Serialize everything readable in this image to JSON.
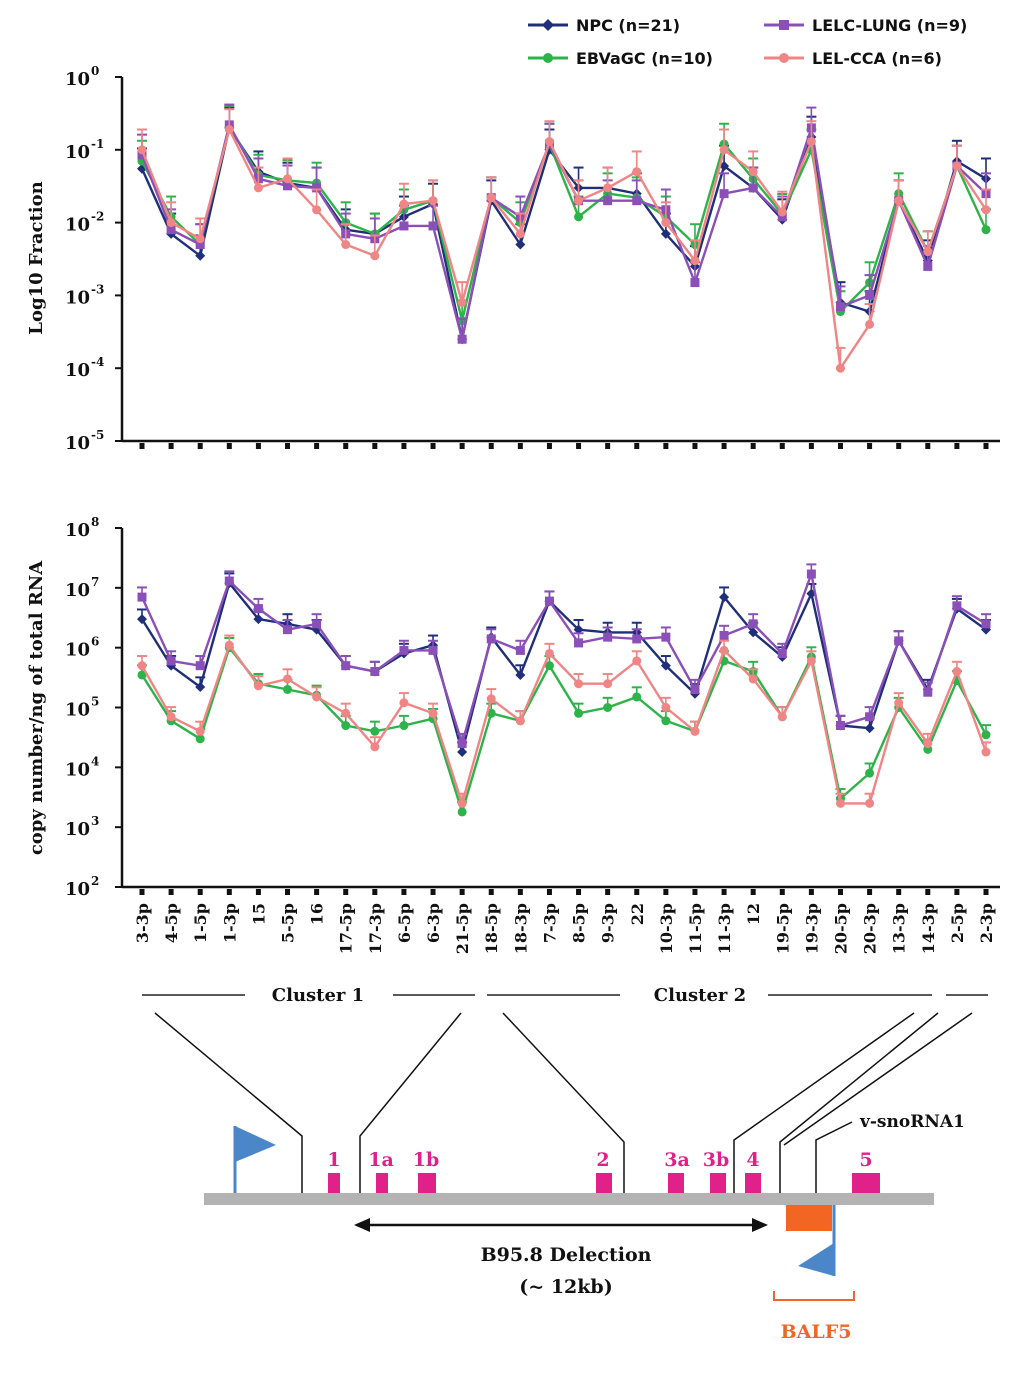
{
  "colors": {
    "npc": "#1f2f7a",
    "ebvagc": "#2db34a",
    "lelc": "#8b4fb8",
    "lelcca": "#f08585",
    "gene_box": "#e0218a",
    "balf5": "#f26522",
    "promoter": "#4a86c8",
    "genome_bar": "#b3b3b3"
  },
  "legend": [
    {
      "label": "NPC (n=21)",
      "marker": "diamond"
    },
    {
      "label": "EBVaGC (n=10)",
      "marker": "circle"
    },
    {
      "label": "LELC-LUNG (n=9)",
      "marker": "square"
    },
    {
      "label": "LEL-CCA (n=6)",
      "marker": "circle"
    }
  ],
  "chart_data": [
    {
      "type": "line",
      "title": "",
      "ylabel": "Log10 Fraction",
      "yscale": "log",
      "ylim": [
        1e-05,
        1
      ],
      "y_ticks": [
        {
          "base": "10",
          "exp": "0"
        },
        {
          "base": "10",
          "exp": "-1"
        },
        {
          "base": "10",
          "exp": "-2"
        },
        {
          "base": "10",
          "exp": "-3"
        },
        {
          "base": "10",
          "exp": "-4"
        },
        {
          "base": "10",
          "exp": "-5"
        }
      ],
      "categories": [
        "3-3p",
        "4-5p",
        "1-5p",
        "1-3p",
        "15",
        "5-5p",
        "16",
        "17-5p",
        "17-3p",
        "6-5p",
        "6-3p",
        "21-5p",
        "18-5p",
        "18-3p",
        "7-3p",
        "8-5p",
        "9-3p",
        "22",
        "10-3p",
        "11-5p",
        "11-3p",
        "12",
        "19-5p",
        "19-3p",
        "20-5p",
        "20-3p",
        "13-3p",
        "14-3p",
        "2-5p",
        "2-3p"
      ],
      "series": [
        {
          "name": "NPC (n=21)",
          "values": [
            0.055,
            0.007,
            0.0035,
            0.2,
            0.05,
            0.035,
            0.03,
            0.008,
            0.007,
            0.012,
            0.018,
            0.00025,
            0.02,
            0.005,
            0.1,
            0.03,
            0.03,
            0.025,
            0.007,
            0.0025,
            0.06,
            0.03,
            0.011,
            0.15,
            0.0008,
            0.0006,
            0.02,
            0.003,
            0.07,
            0.04
          ]
        },
        {
          "name": "EBVaGC (n=10)",
          "values": [
            0.07,
            0.012,
            0.005,
            0.21,
            0.045,
            0.038,
            0.035,
            0.01,
            0.007,
            0.015,
            0.02,
            0.00045,
            0.022,
            0.01,
            0.12,
            0.012,
            0.025,
            0.022,
            0.012,
            0.005,
            0.12,
            0.04,
            0.013,
            0.1,
            0.0006,
            0.0015,
            0.025,
            0.004,
            0.06,
            0.008
          ]
        },
        {
          "name": "LELC-LUNG (n=9)",
          "values": [
            0.085,
            0.008,
            0.005,
            0.22,
            0.04,
            0.032,
            0.03,
            0.007,
            0.006,
            0.009,
            0.009,
            0.00025,
            0.022,
            0.012,
            0.12,
            0.02,
            0.02,
            0.02,
            0.015,
            0.0015,
            0.025,
            0.03,
            0.012,
            0.2,
            0.0007,
            0.001,
            0.02,
            0.0025,
            0.06,
            0.025
          ]
        },
        {
          "name": "LEL-CCA (n=6)",
          "values": [
            0.1,
            0.01,
            0.006,
            0.19,
            0.03,
            0.04,
            0.015,
            0.005,
            0.0035,
            0.018,
            0.02,
            0.0008,
            0.022,
            0.007,
            0.13,
            0.02,
            0.03,
            0.05,
            0.01,
            0.003,
            0.1,
            0.05,
            0.014,
            0.13,
            0.0001,
            0.0004,
            0.02,
            0.004,
            0.06,
            0.015
          ]
        }
      ]
    },
    {
      "type": "line",
      "title": "",
      "ylabel": "copy number/ng of total RNA",
      "yscale": "log",
      "ylim": [
        100,
        100000000.0
      ],
      "y_ticks": [
        {
          "base": "10",
          "exp": "8"
        },
        {
          "base": "10",
          "exp": "7"
        },
        {
          "base": "10",
          "exp": "6"
        },
        {
          "base": "10",
          "exp": "5"
        },
        {
          "base": "10",
          "exp": "4"
        },
        {
          "base": "10",
          "exp": "3"
        },
        {
          "base": "10",
          "exp": "2"
        }
      ],
      "categories": [
        "3-3p",
        "4-5p",
        "1-5p",
        "1-3p",
        "15",
        "5-5p",
        "16",
        "17-5p",
        "17-3p",
        "6-5p",
        "6-3p",
        "21-5p",
        "18-5p",
        "18-3p",
        "7-3p",
        "8-5p",
        "9-3p",
        "22",
        "10-3p",
        "11-5p",
        "11-3p",
        "12",
        "19-5p",
        "19-3p",
        "20-5p",
        "20-3p",
        "13-3p",
        "14-3p",
        "2-5p",
        "2-3p"
      ],
      "series": [
        {
          "name": "NPC (n=21)",
          "values": [
            3000000,
            500000,
            220000,
            12000000,
            3000000,
            2500000,
            2000000,
            500000,
            400000,
            800000,
            1100000,
            18000,
            1500000,
            350000,
            6000000,
            2000000,
            1800000,
            1800000,
            500000,
            170000,
            7000000,
            1800000,
            700000,
            8000000,
            50000,
            45000,
            1300000,
            200000,
            4500000,
            2000000
          ]
        },
        {
          "name": "EBVaGC (n=10)",
          "values": [
            350000,
            60000,
            30000,
            1000000,
            250000,
            200000,
            160000,
            50000,
            40000,
            50000,
            65000,
            1800,
            80000,
            60000,
            500000,
            80000,
            100000,
            150000,
            60000,
            40000,
            600000,
            400000,
            70000,
            700000,
            3000,
            8000,
            100000,
            20000,
            280000,
            35000
          ]
        },
        {
          "name": "LELC-LUNG (n=9)",
          "values": [
            7000000,
            600000,
            500000,
            13000000,
            4500000,
            2000000,
            2500000,
            500000,
            400000,
            900000,
            900000,
            25000,
            1400000,
            900000,
            6000000,
            1200000,
            1500000,
            1400000,
            1500000,
            200000,
            1600000,
            2500000,
            800000,
            17000000,
            50000,
            70000,
            1300000,
            180000,
            5000000,
            2500000
          ]
        },
        {
          "name": "LEL-CCA (n=6)",
          "values": [
            500000,
            70000,
            40000,
            1100000,
            230000,
            300000,
            150000,
            80000,
            22000,
            120000,
            80000,
            2500,
            140000,
            60000,
            800000,
            250000,
            250000,
            600000,
            100000,
            40000,
            900000,
            300000,
            70000,
            600000,
            2500,
            2500,
            120000,
            25000,
            400000,
            18000
          ]
        }
      ]
    }
  ],
  "clusters": [
    {
      "label": "Cluster 1"
    },
    {
      "label": "Cluster 2"
    }
  ],
  "diagram": {
    "genes": [
      {
        "label": "1"
      },
      {
        "label": "1a"
      },
      {
        "label": "1b"
      },
      {
        "label": "2"
      },
      {
        "label": "3a"
      },
      {
        "label": "3b"
      },
      {
        "label": "4"
      },
      {
        "label": "5"
      }
    ],
    "snorna_label": "v-snoRNA1",
    "deletion_label_line1": "B95.8 Delection",
    "deletion_label_line2": "(~ 12kb)",
    "balf5_label": "BALF5"
  }
}
